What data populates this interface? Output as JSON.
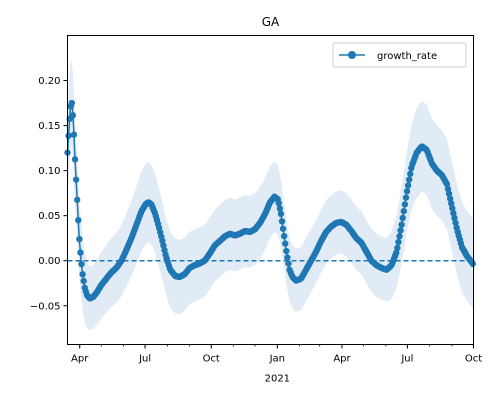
{
  "chart_data": {
    "type": "line",
    "title": "GA",
    "xlabel": "",
    "ylabel": "",
    "x_range": [
      "2020-03-15",
      "2021-10-01"
    ],
    "ylim": [
      -0.093,
      0.25
    ],
    "y_ticks": [
      -0.05,
      0.0,
      0.05,
      0.1,
      0.15,
      0.2
    ],
    "y_tick_labels": [
      "−0.05",
      "0.00",
      "0.05",
      "0.10",
      "0.15",
      "0.20"
    ],
    "x_ticks": [
      {
        "date": "2020-04-01",
        "label": "Apr"
      },
      {
        "date": "2020-07-01",
        "label": "Jul"
      },
      {
        "date": "2020-10-01",
        "label": "Oct"
      },
      {
        "date": "2021-01-01",
        "label": "Jan"
      },
      {
        "date": "2021-04-01",
        "label": "Apr"
      },
      {
        "date": "2021-07-01",
        "label": "Jul"
      },
      {
        "date": "2021-10-01",
        "label": "Oct"
      }
    ],
    "x_year_label": {
      "date": "2021-01-01",
      "label": "2021"
    },
    "grid": false,
    "legend": {
      "placement": "top-right",
      "entries": [
        "growth_rate"
      ]
    },
    "reference_line": {
      "y": 0,
      "style": "dashed"
    },
    "colors": {
      "line": "#1f77b4",
      "band": "#dce8f5"
    },
    "band_halfwidth": [
      [
        "2020-03-15",
        0.05
      ],
      [
        "2020-04-15",
        0.035
      ],
      [
        "2020-06-01",
        0.04
      ],
      [
        "2020-07-01",
        0.045
      ],
      [
        "2020-09-01",
        0.04
      ],
      [
        "2020-12-25",
        0.04
      ],
      [
        "2021-01-20",
        0.035
      ],
      [
        "2021-04-01",
        0.035
      ],
      [
        "2021-06-01",
        0.035
      ],
      [
        "2021-07-15",
        0.05
      ],
      [
        "2021-10-01",
        0.05
      ]
    ],
    "series": [
      {
        "name": "growth_rate",
        "points": [
          [
            "2020-03-15",
            0.12
          ],
          [
            "2020-03-17",
            0.145
          ],
          [
            "2020-03-19",
            0.17
          ],
          [
            "2020-03-21",
            0.175
          ],
          [
            "2020-03-22",
            0.168
          ],
          [
            "2020-03-23",
            0.155
          ],
          [
            "2020-03-24",
            0.14
          ],
          [
            "2020-03-25",
            0.12
          ],
          [
            "2020-03-26",
            0.105
          ],
          [
            "2020-03-27",
            0.09
          ],
          [
            "2020-03-28",
            0.075
          ],
          [
            "2020-03-29",
            0.06
          ],
          [
            "2020-03-30",
            0.045
          ],
          [
            "2020-03-31",
            0.03
          ],
          [
            "2020-04-01",
            0.018
          ],
          [
            "2020-04-03",
            0.0
          ],
          [
            "2020-04-05",
            -0.015
          ],
          [
            "2020-04-08",
            -0.03
          ],
          [
            "2020-04-11",
            -0.038
          ],
          [
            "2020-04-15",
            -0.042
          ],
          [
            "2020-04-20",
            -0.04
          ],
          [
            "2020-04-25",
            -0.035
          ],
          [
            "2020-05-01",
            -0.027
          ],
          [
            "2020-05-08",
            -0.02
          ],
          [
            "2020-05-15",
            -0.013
          ],
          [
            "2020-05-22",
            -0.008
          ],
          [
            "2020-05-29",
            0.0
          ],
          [
            "2020-06-05",
            0.012
          ],
          [
            "2020-06-12",
            0.025
          ],
          [
            "2020-06-19",
            0.04
          ],
          [
            "2020-06-26",
            0.055
          ],
          [
            "2020-07-02",
            0.063
          ],
          [
            "2020-07-06",
            0.065
          ],
          [
            "2020-07-10",
            0.062
          ],
          [
            "2020-07-15",
            0.052
          ],
          [
            "2020-07-20",
            0.038
          ],
          [
            "2020-07-25",
            0.022
          ],
          [
            "2020-07-30",
            0.005
          ],
          [
            "2020-08-05",
            -0.01
          ],
          [
            "2020-08-12",
            -0.017
          ],
          [
            "2020-08-18",
            -0.018
          ],
          [
            "2020-08-25",
            -0.015
          ],
          [
            "2020-09-01",
            -0.008
          ],
          [
            "2020-09-08",
            -0.005
          ],
          [
            "2020-09-15",
            -0.003
          ],
          [
            "2020-09-22",
            0.0
          ],
          [
            "2020-09-29",
            0.008
          ],
          [
            "2020-10-06",
            0.017
          ],
          [
            "2020-10-13",
            0.022
          ],
          [
            "2020-10-20",
            0.027
          ],
          [
            "2020-10-27",
            0.03
          ],
          [
            "2020-11-03",
            0.028
          ],
          [
            "2020-11-10",
            0.03
          ],
          [
            "2020-11-17",
            0.033
          ],
          [
            "2020-11-24",
            0.032
          ],
          [
            "2020-12-01",
            0.035
          ],
          [
            "2020-12-08",
            0.042
          ],
          [
            "2020-12-15",
            0.052
          ],
          [
            "2020-12-22",
            0.065
          ],
          [
            "2020-12-28",
            0.071
          ],
          [
            "2021-01-02",
            0.068
          ],
          [
            "2021-01-06",
            0.052
          ],
          [
            "2021-01-10",
            0.03
          ],
          [
            "2021-01-14",
            0.008
          ],
          [
            "2021-01-18",
            -0.01
          ],
          [
            "2021-01-22",
            -0.018
          ],
          [
            "2021-01-27",
            -0.022
          ],
          [
            "2021-02-03",
            -0.02
          ],
          [
            "2021-02-10",
            -0.01
          ],
          [
            "2021-02-17",
            0.0
          ],
          [
            "2021-02-24",
            0.01
          ],
          [
            "2021-03-03",
            0.022
          ],
          [
            "2021-03-10",
            0.032
          ],
          [
            "2021-03-17",
            0.038
          ],
          [
            "2021-03-24",
            0.042
          ],
          [
            "2021-03-31",
            0.043
          ],
          [
            "2021-04-07",
            0.04
          ],
          [
            "2021-04-14",
            0.033
          ],
          [
            "2021-04-21",
            0.025
          ],
          [
            "2021-04-28",
            0.02
          ],
          [
            "2021-05-05",
            0.01
          ],
          [
            "2021-05-12",
            0.0
          ],
          [
            "2021-05-19",
            -0.005
          ],
          [
            "2021-05-26",
            -0.008
          ],
          [
            "2021-06-02",
            -0.01
          ],
          [
            "2021-06-09",
            -0.005
          ],
          [
            "2021-06-16",
            0.01
          ],
          [
            "2021-06-23",
            0.04
          ],
          [
            "2021-06-30",
            0.075
          ],
          [
            "2021-07-07",
            0.105
          ],
          [
            "2021-07-14",
            0.12
          ],
          [
            "2021-07-21",
            0.127
          ],
          [
            "2021-07-28",
            0.123
          ],
          [
            "2021-08-04",
            0.108
          ],
          [
            "2021-08-11",
            0.1
          ],
          [
            "2021-08-18",
            0.095
          ],
          [
            "2021-08-25",
            0.085
          ],
          [
            "2021-09-01",
            0.06
          ],
          [
            "2021-09-08",
            0.035
          ],
          [
            "2021-09-15",
            0.015
          ],
          [
            "2021-09-22",
            0.005
          ],
          [
            "2021-09-29",
            -0.002
          ],
          [
            "2021-10-01",
            -0.005
          ]
        ]
      }
    ]
  }
}
